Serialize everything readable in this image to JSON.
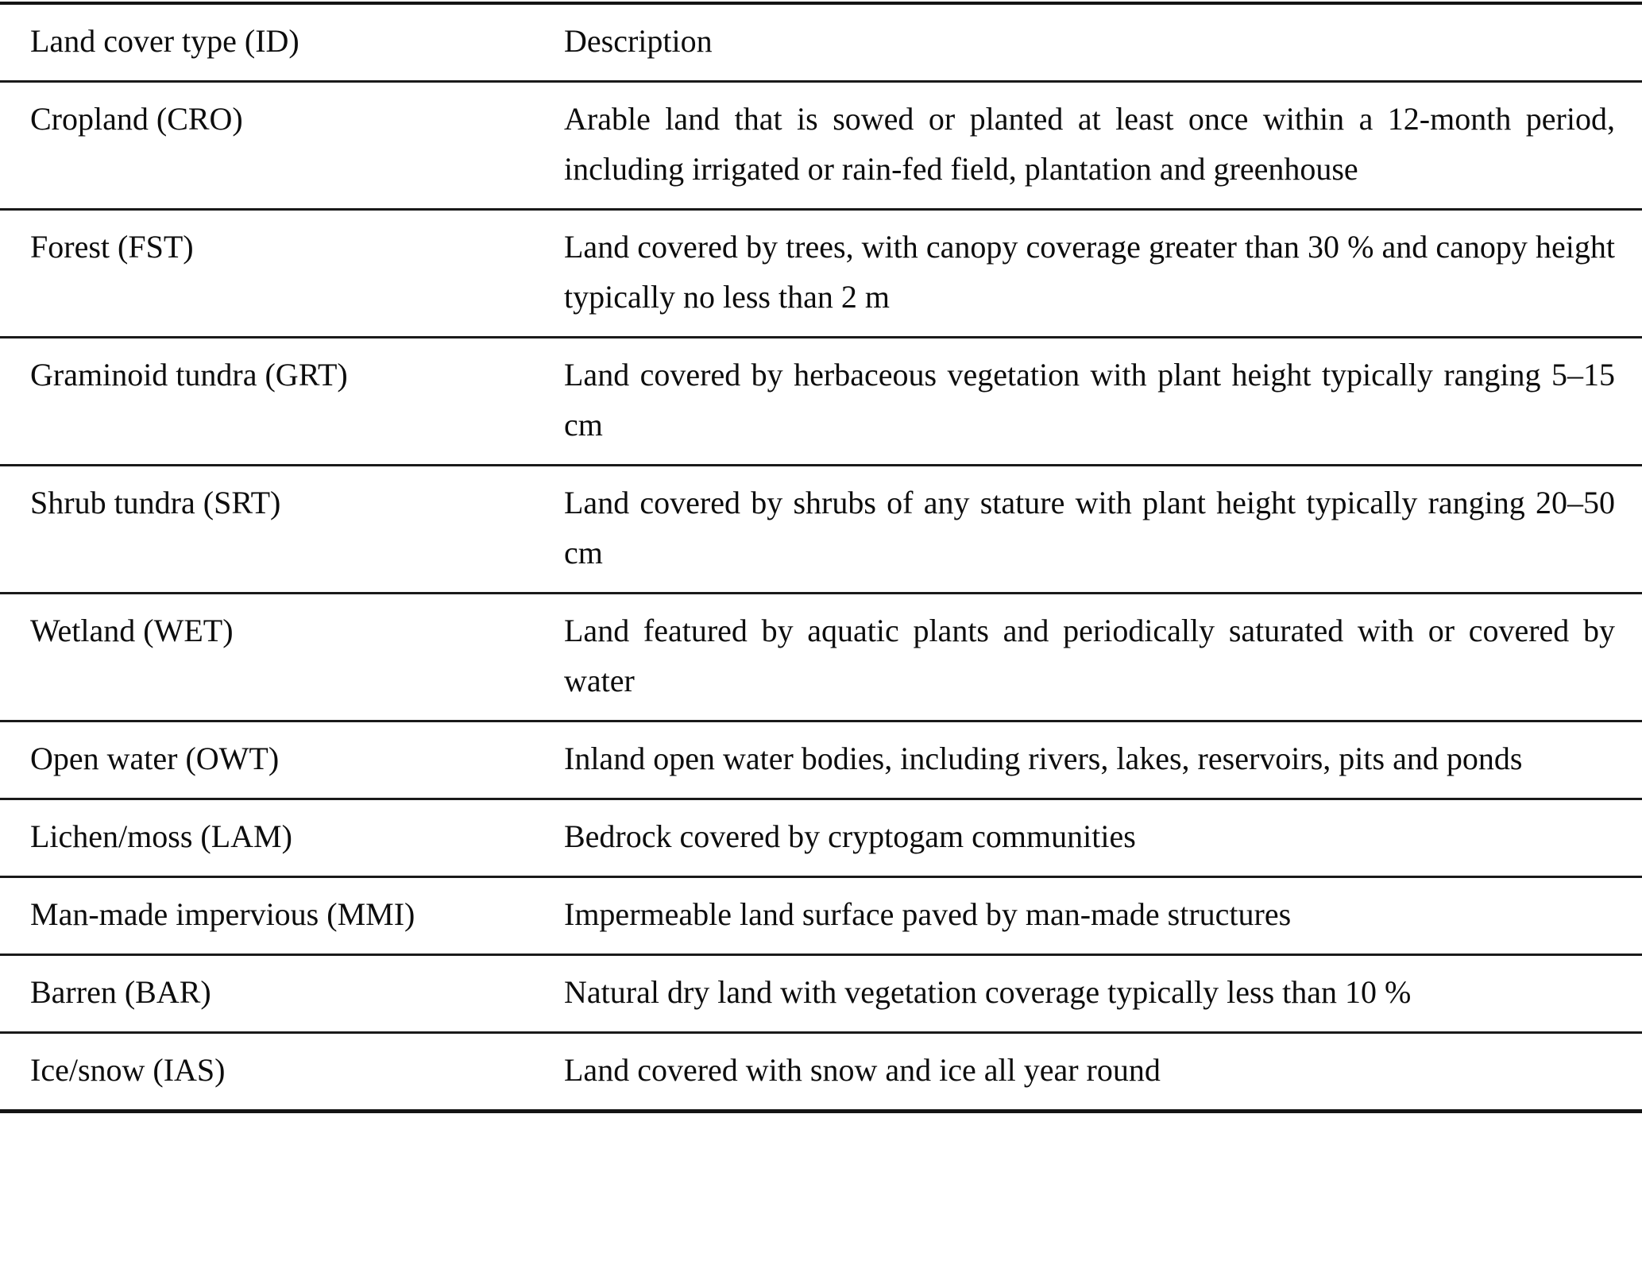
{
  "table": {
    "columns": [
      "Land cover type (ID)",
      "Description"
    ],
    "rows": [
      {
        "type": "Cropland (CRO)",
        "description": "Arable land that is sowed or planted at least once within a 12-month period, including irrigated or rain-fed field, plantation and greenhouse"
      },
      {
        "type": "Forest (FST)",
        "description": "Land covered by trees, with canopy coverage greater than 30 % and canopy height typically no less than 2 m"
      },
      {
        "type": "Graminoid tundra (GRT)",
        "description": "Land covered by herbaceous vegetation with plant height typically ranging 5–15 cm"
      },
      {
        "type": "Shrub tundra (SRT)",
        "description": "Land covered by shrubs of any stature with plant height typically ranging 20–50 cm"
      },
      {
        "type": "Wetland (WET)",
        "description": "Land featured by aquatic plants and periodically saturated with or covered by water"
      },
      {
        "type": "Open water (OWT)",
        "description": "Inland open water bodies, including rivers, lakes, reservoirs, pits and ponds"
      },
      {
        "type": "Lichen/moss (LAM)",
        "description": "Bedrock covered by cryptogam communities"
      },
      {
        "type": "Man-made impervious (MMI)",
        "description": "Impermeable land surface paved by man-made structures"
      },
      {
        "type": "Barren (BAR)",
        "description": "Natural dry land with vegetation coverage typically less than 10 %"
      },
      {
        "type": "Ice/snow (IAS)",
        "description": "Land covered with snow and ice all year round"
      }
    ]
  }
}
